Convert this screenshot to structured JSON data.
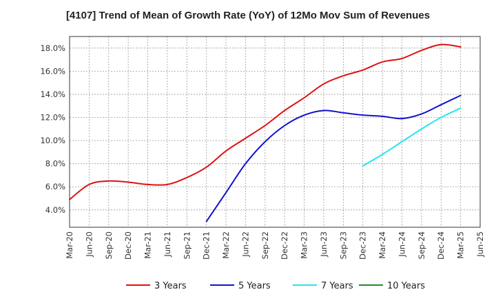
{
  "chart_data": {
    "type": "line",
    "title": "[4107]  Trend of Mean of Growth Rate (YoY) of 12Mo Mov Sum of Revenues",
    "xlabel": "",
    "ylabel": "",
    "ylim": [
      2.5,
      19.0
    ],
    "yticks": [
      4.0,
      6.0,
      8.0,
      10.0,
      12.0,
      14.0,
      16.0,
      18.0
    ],
    "ytick_labels": [
      "4.0%",
      "6.0%",
      "8.0%",
      "10.0%",
      "12.0%",
      "14.0%",
      "16.0%",
      "18.0%"
    ],
    "x_labels": [
      "Mar-20",
      "Jun-20",
      "Sep-20",
      "Dec-20",
      "Mar-21",
      "Jun-21",
      "Sep-21",
      "Dec-21",
      "Mar-22",
      "Jun-22",
      "Sep-22",
      "Dec-22",
      "Mar-23",
      "Jun-23",
      "Sep-23",
      "Dec-23",
      "Mar-24",
      "Jun-24",
      "Sep-24",
      "Dec-24",
      "Mar-25",
      "Jun-25"
    ],
    "grid": true,
    "legend_position": "bottom",
    "series": [
      {
        "name": "3 Years",
        "color": "#dd1111",
        "points": [
          [
            0,
            4.9
          ],
          [
            1,
            6.2
          ],
          [
            2,
            6.5
          ],
          [
            3,
            6.4
          ],
          [
            4,
            6.2
          ],
          [
            5,
            6.2
          ],
          [
            6,
            6.8
          ],
          [
            7,
            7.7
          ],
          [
            8,
            9.1
          ],
          [
            9,
            10.2
          ],
          [
            10,
            11.3
          ],
          [
            11,
            12.6
          ],
          [
            12,
            13.7
          ],
          [
            13,
            14.9
          ],
          [
            14,
            15.6
          ],
          [
            15,
            16.1
          ],
          [
            16,
            16.8
          ],
          [
            17,
            17.1
          ],
          [
            18,
            17.8
          ],
          [
            19,
            18.3
          ],
          [
            20,
            18.1
          ]
        ]
      },
      {
        "name": "5 Years",
        "color": "#1111cc",
        "points": [
          [
            7,
            3.0
          ],
          [
            8,
            5.5
          ],
          [
            9,
            8.0
          ],
          [
            10,
            9.9
          ],
          [
            11,
            11.3
          ],
          [
            12,
            12.2
          ],
          [
            13,
            12.6
          ],
          [
            14,
            12.4
          ],
          [
            15,
            12.2
          ],
          [
            16,
            12.1
          ],
          [
            17,
            11.9
          ],
          [
            18,
            12.3
          ],
          [
            19,
            13.1
          ],
          [
            20,
            13.9
          ]
        ]
      },
      {
        "name": "7 Years",
        "color": "#22e5f0",
        "points": [
          [
            15,
            7.8
          ],
          [
            16,
            8.8
          ],
          [
            17,
            9.9
          ],
          [
            18,
            11.0
          ],
          [
            19,
            12.0
          ],
          [
            20,
            12.8
          ]
        ]
      },
      {
        "name": "10 Years",
        "color": "#228822",
        "points": []
      }
    ]
  }
}
